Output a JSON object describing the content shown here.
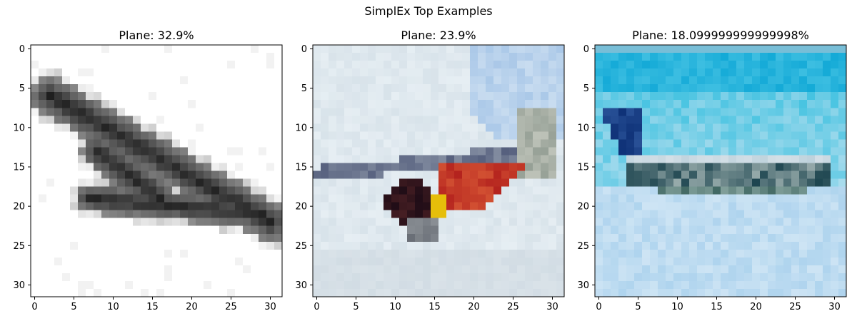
{
  "figure": {
    "title": "SimplEx Top Examples"
  },
  "chart_data": [
    {
      "type": "image",
      "title": "Plane: 32.9%",
      "label": "Plane",
      "weight_percent": 32.9,
      "image_size": [
        32,
        32
      ],
      "xticks": [
        "0",
        "5",
        "10",
        "15",
        "20",
        "25",
        "30"
      ],
      "yticks": [
        "0",
        "5",
        "10",
        "15",
        "20",
        "25",
        "30"
      ],
      "background": "#ffffff",
      "content": "dark grey airplane silhouette on a white background, nose at upper-left, fuselage sloping down to tail at lower-right"
    },
    {
      "type": "image",
      "title": "Plane: 23.9%",
      "label": "Plane",
      "weight_percent": 23.9,
      "image_size": [
        32,
        32
      ],
      "xticks": [
        "0",
        "5",
        "10",
        "15",
        "20",
        "25",
        "30"
      ],
      "yticks": [
        "0",
        "5",
        "10",
        "15",
        "20",
        "25",
        "30"
      ],
      "background": "#dfe8ee",
      "content": "red and dark-colored aircraft with a long grey fuselage across a pale sky, light blue sky patch at upper right"
    },
    {
      "type": "image",
      "title": "Plane: 18.099999999999998%",
      "label": "Plane",
      "weight_percent": 18.099999999999998,
      "image_size": [
        32,
        32
      ],
      "xticks": [
        "0",
        "5",
        "10",
        "15",
        "20",
        "25",
        "30"
      ],
      "yticks": [
        "0",
        "5",
        "10",
        "15",
        "20",
        "25",
        "30"
      ],
      "background": "#b6dcf0",
      "content": "airliner with dark blue tail flying left-to-right across a bright cyan sky band over pale blue clouds"
    }
  ]
}
